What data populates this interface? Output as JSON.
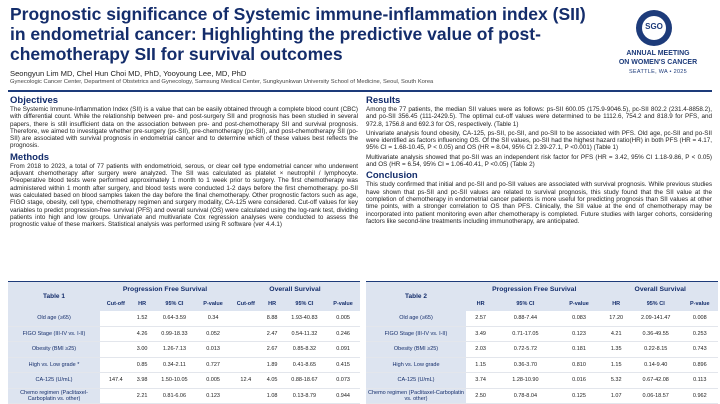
{
  "title": "Prognostic significance of Systemic immune-inflammation index (SII) in endometrial cancer: Highlighting the predictive value of post-chemotherapy SII for survival outcomes",
  "authors": "Seongyun Lim MD, Chel Hun Choi MD, PhD, Yooyoung Lee, MD, PhD",
  "affiliation": "Gynecologic Cancer Center, Department of Obstetrics and Gynecology, Samsung Medical Center, Sungkyunkwan University School of Medicine, Seoul, South Korea",
  "logo": {
    "abbr": "SGO",
    "line1": "ANNUAL MEETING",
    "line2": "ON WOMEN'S CANCER",
    "line3": "SEATTLE, WA • 2025"
  },
  "objectives": {
    "heading": "Objectives",
    "text": "The Systemic Immune-Inflammation Index (SII) is a value that can be easily obtained through a complete blood count (CBC) with differential count. While the relationship between pre- and post-surgery SII and prognosis has been studied in several papers, there is still insufficient data on the association between pre- and post-chemotherapy SII and survival prognosis. Therefore, we aimed to investigate whether pre-surgery (ps-SII), pre-chemotherapy (pc-SII), and post-chemotherapy SII (po-SII) are associated with survival prognosis in endometrial cancer and to determine which of these values best reflects the prognosis."
  },
  "methods": {
    "heading": "Methods",
    "text": "From 2018 to 2023, a total of 77 patients with endometrioid, serous, or clear cell type endometrial cancer who underwent adjuvant chemotherapy after surgery were analyzed. The SII was calculated as platelet × neutrophil / lymphocyte. Preoperative blood tests were performed approximately 1 month to 1 week prior to surgery. The first chemotherapy was administered within 1 month after surgery, and blood tests were conducted 1-2 days before the first chemotherapy. po-SII was calculated based on blood samples taken the day before the final chemotherapy. Other prognostic factors such as age, FIGO stage, obesity, cell type, chemotherapy regimen and surgery modality, CA-125 were considered. Cut-off values for key variables to predict progression-free survival (PFS) and overall survival (OS) were calculated using the log-rank test, dividing patients into high and low groups. Univariate and multivariate Cox regression analyses were conducted to assess the prognostic value of these markers. Statistical analysis was performed using R software (ver 4.4.1)"
  },
  "results": {
    "heading": "Results",
    "p1": "Among the 77 patients, the median SII values were as follows: ps-SII 600.05 (175.9-9046.5), pc-SII 802.2 (231.4-8858.2), and po-SII 356.45 (111-2429.5). The optimal cut-off values were determined to be 1112.6, 754.2 and 818.9 for PFS, and 972.8, 1756.8 and 692.3 for OS, respectively. (Table 1)",
    "p2": "Univariate analysis found obesity, CA-125, ps-SII, pc-SII, and po-SII to be associated with PFS. Old age, pc-SII and po-SII were identified as factors influencing OS. Of the SII values, po-SII had the highest hazard ratio(HR) in both PFS (HR = 4.17, 95% CI = 1.68-10.45, P < 0.05) and OS (HR = 8.04, 95% CI 2.39-27.1, P <0.001) (Table 1)",
    "p3": "Multivariate analysis showed that po-SII was an independent risk factor for PFS (HR = 3.42, 95% CI 1.18-9.86, P < 0.05) and OS (HR = 6.54, 95% CI = 1.06-40.41, P <0.05) (Table 2)"
  },
  "conclusion": {
    "heading": "Conclusion",
    "text": "This study confirmed that initial and pc-SII and po-SII values are associated with survival prognosis. While previous studies have shown that ps-SII and pc-SII values are related to survival prognosis, this study found that the SII value at the completion of chemotherapy in endometrial cancer patients is more useful for predicting prognosis than SII values at other time points, with a stronger correlation to OS than PFS. Clinically, the SII value at the end of chemotherapy may be incorporated into patient monitoring even after chemotherapy is completed. Future studies with larger cohorts, considering factors like second-line treatments including immunotherapy, are anticipated."
  },
  "table1": {
    "label": "Table 1",
    "group_pfs": "Progression Free Survival",
    "group_os": "Overall Survival",
    "cols": [
      "Cut-off",
      "HR",
      "95% CI",
      "P-value",
      "Cut-off",
      "HR",
      "95% CI",
      "P-value"
    ],
    "rows": [
      {
        "label": "Old age (≥65)",
        "v": [
          "",
          "1.52",
          "0.64-3.59",
          "0.34",
          "",
          "8.88",
          "1.93-40.83",
          "0.005"
        ]
      },
      {
        "label": "FIGO Stage (III-IV vs. I-II)",
        "v": [
          "",
          "4.26",
          "0.99-18.33",
          "0.052",
          "",
          "2.47",
          "0.54-11.32",
          "0.246"
        ]
      },
      {
        "label": "Obesity (BMI ≥25)",
        "v": [
          "",
          "3.00",
          "1.26-7.13",
          "0.013",
          "",
          "2.67",
          "0.85-8.32",
          "0.091"
        ]
      },
      {
        "label": "High vs. Low grade *",
        "v": [
          "",
          "0.85",
          "0.34-2.11",
          "0.727",
          "",
          "1.89",
          "0.41-8.65",
          "0.415"
        ]
      },
      {
        "label": "CA-125 (U/mL)",
        "v": [
          "147.4",
          "3.98",
          "1.50-10.05",
          "0.005",
          "12.4",
          "4.05",
          "0.88-18.67",
          "0.073"
        ]
      },
      {
        "label": "Chemo regimen (Paclitaxel-Carboplatin vs. other)",
        "v": [
          "",
          "2.21",
          "0.81-6.06",
          "0.123",
          "",
          "1.08",
          "0.13-8.79",
          "0.944"
        ]
      }
    ]
  },
  "table2": {
    "label": "Table 2",
    "group_pfs": "Progression Free Survival",
    "group_os": "Overall Survival",
    "cols": [
      "HR",
      "95% CI",
      "P-value",
      "HR",
      "95% CI",
      "P-value"
    ],
    "rows": [
      {
        "label": "Old age (≥65)",
        "v": [
          "2.57",
          "0.88-7.44",
          "0.083",
          "17.20",
          "2.09-141.47",
          "0.008"
        ]
      },
      {
        "label": "FIGO Stage (III-IV vs. I-II)",
        "v": [
          "3.49",
          "0.71-17.05",
          "0.123",
          "4.21",
          "0.36-49.55",
          "0.253"
        ]
      },
      {
        "label": "Obesity (BMI ≥25)",
        "v": [
          "2.03",
          "0.72-5.72",
          "0.181",
          "1.35",
          "0.22-8.15",
          "0.743"
        ]
      },
      {
        "label": "High vs. Low grade",
        "v": [
          "1.15",
          "0.36-3.70",
          "0.810",
          "1.15",
          "0.14-9.40",
          "0.896"
        ]
      },
      {
        "label": "CA-125 (U/mL)",
        "v": [
          "3.74",
          "1.28-10.90",
          "0.016",
          "5.32",
          "0.67-42.08",
          "0.113"
        ]
      },
      {
        "label": "Chemo regimen (Paclitaxel-Carboplatin vs. other)",
        "v": [
          "2.50",
          "0.78-8.04",
          "0.125",
          "1.07",
          "0.06-18.57",
          "0.962"
        ]
      }
    ]
  }
}
